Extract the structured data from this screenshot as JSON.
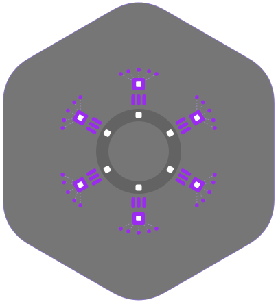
{
  "emblem": {
    "icon": "hexagon-ring-emblem-icon",
    "arm_count": 6,
    "colors": {
      "background": "#ffffff",
      "hexagon_fill": "#767676",
      "hexagon_stroke": "#8a74c8",
      "ring": "#636363",
      "ring_marker": "#ffffff",
      "accent": "#9b2bf0",
      "module_core": "#ffffff",
      "connector_line": "#a98ce0"
    }
  }
}
